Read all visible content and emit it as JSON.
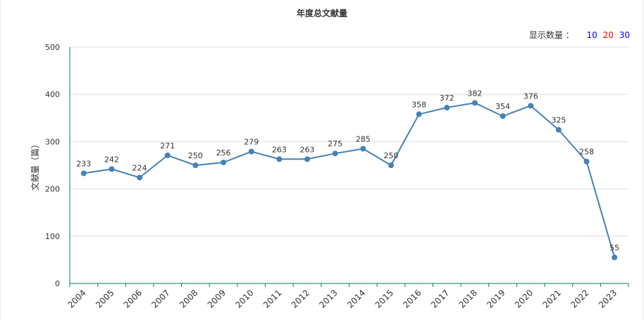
{
  "title": "年度总文献量",
  "display": {
    "label": "显示数量 ：",
    "options": [
      {
        "label": "10",
        "color": "#0000ff"
      },
      {
        "label": "20",
        "color": "#ff0000"
      },
      {
        "label": "30",
        "color": "#0000ff"
      }
    ]
  },
  "chart_data": {
    "type": "line",
    "title": "年度总文献量",
    "xlabel": "",
    "ylabel": "文献量（篇）",
    "ylim": [
      0,
      500
    ],
    "yticks": [
      0,
      100,
      200,
      300,
      400,
      500
    ],
    "grid": true,
    "categories": [
      "2004",
      "2005",
      "2006",
      "2007",
      "2008",
      "2009",
      "2010",
      "2011",
      "2012",
      "2013",
      "2014",
      "2015",
      "2016",
      "2017",
      "2018",
      "2019",
      "2020",
      "2021",
      "2022",
      "2023"
    ],
    "series": [
      {
        "values": [
          233,
          242,
          224,
          271,
          250,
          256,
          279,
          263,
          263,
          275,
          285,
          250,
          358,
          372,
          382,
          354,
          376,
          325,
          258,
          55
        ],
        "color": "#4682b4"
      }
    ],
    "axis_color": "#008060"
  }
}
